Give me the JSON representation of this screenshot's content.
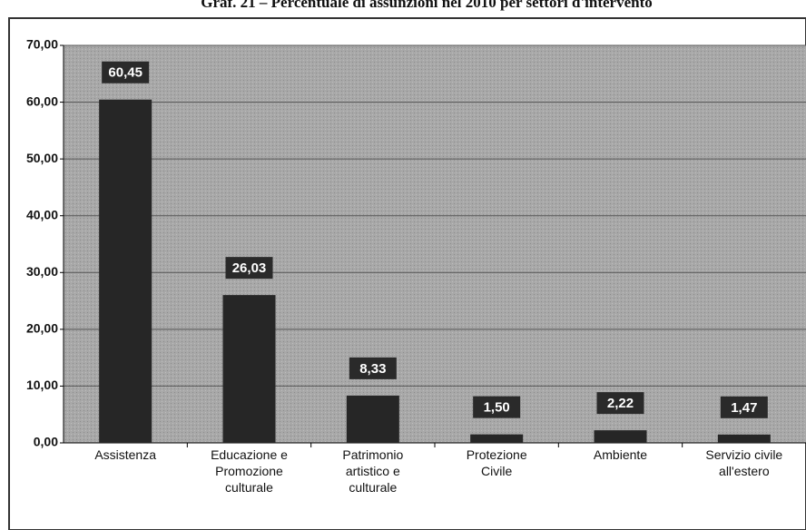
{
  "chart_data": {
    "type": "bar",
    "title": "Graf. 21 – Percentuale di assunzioni nel 2010 per settori d'intervento",
    "categories": [
      "Assistenza",
      "Educazione e\nPromozione\nculturale",
      "Patrimonio\nartistico e\nculturale",
      "Protezione\nCivile",
      "Ambiente",
      "Servizio civile\nall'estero"
    ],
    "values": [
      60.45,
      26.03,
      8.33,
      1.5,
      2.22,
      1.47
    ],
    "value_labels": [
      "60,45",
      "26,03",
      "8,33",
      "1,50",
      "2,22",
      "1,47"
    ],
    "color": "#262626",
    "ylim": [
      0,
      70
    ],
    "yticks": [
      {
        "value": 0,
        "label": "0,00"
      },
      {
        "value": 10,
        "label": "10,00"
      },
      {
        "value": 20,
        "label": "20,00"
      },
      {
        "value": 30,
        "label": "30,00"
      },
      {
        "value": 40,
        "label": "40,00"
      },
      {
        "value": 50,
        "label": "50,00"
      },
      {
        "value": 60,
        "label": "60,00"
      },
      {
        "value": 70,
        "label": "70,00"
      }
    ],
    "grid": true
  }
}
